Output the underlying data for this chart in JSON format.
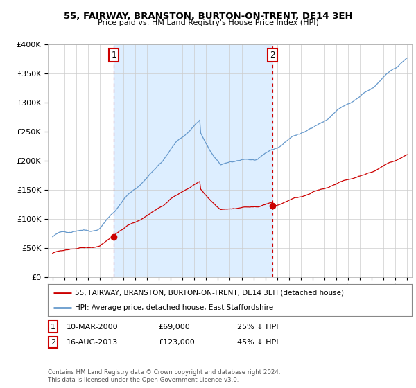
{
  "title": "55, FAIRWAY, BRANSTON, BURTON-ON-TRENT, DE14 3EH",
  "subtitle": "Price paid vs. HM Land Registry's House Price Index (HPI)",
  "legend_label_red": "55, FAIRWAY, BRANSTON, BURTON-ON-TRENT, DE14 3EH (detached house)",
  "legend_label_blue": "HPI: Average price, detached house, East Staffordshire",
  "annotation1_date": "10-MAR-2000",
  "annotation1_price": "£69,000",
  "annotation1_pct": "25% ↓ HPI",
  "annotation1_year": 2000.19,
  "annotation1_value": 69000,
  "annotation2_date": "16-AUG-2013",
  "annotation2_price": "£123,000",
  "annotation2_pct": "45% ↓ HPI",
  "annotation2_year": 2013.62,
  "annotation2_value": 123000,
  "footer": "Contains HM Land Registry data © Crown copyright and database right 2024.\nThis data is licensed under the Open Government Licence v3.0.",
  "ylim": [
    0,
    400000
  ],
  "xlim_start": 1994.6,
  "xlim_end": 2025.4,
  "red_color": "#cc0000",
  "blue_color": "#6699cc",
  "shade_color": "#ddeeff",
  "background_color": "#ffffff",
  "grid_color": "#cccccc"
}
